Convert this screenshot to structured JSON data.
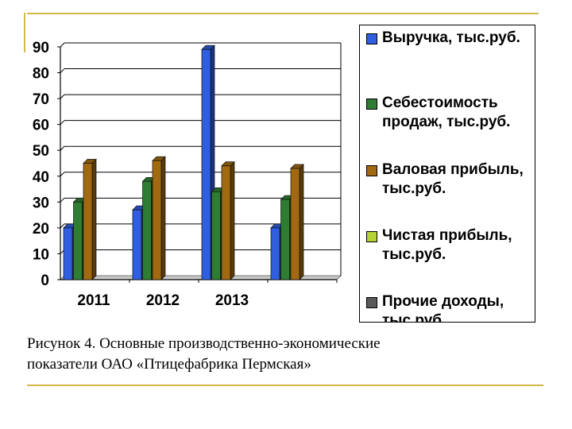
{
  "caption": {
    "line1": "Рисунок 4. Основные производственно-экономические",
    "line2": "показатели ОАО «Птицефабрика Пермская»"
  },
  "colors": {
    "series": [
      "#2f5fe0",
      "#2e7d32",
      "#a26a10",
      "#b5d334",
      "#5a5a5a"
    ],
    "decor": "#d4b84a"
  },
  "chart_data": {
    "type": "bar",
    "categories": [
      "2011",
      "2012",
      "2013",
      ""
    ],
    "ylim": [
      0,
      90
    ],
    "yticks": [
      "0",
      "10",
      "20",
      "30",
      "40",
      "50",
      "60",
      "70",
      "80",
      "90"
    ],
    "grid": true,
    "legend_position": "right",
    "series": [
      {
        "name": "Выручка, тыс.руб.",
        "values": [
          20,
          27,
          89,
          20
        ]
      },
      {
        "name": "Себестоимость продаж, тыс.руб.",
        "values": [
          30,
          38,
          34,
          31
        ]
      },
      {
        "name": "Валовая прибыль, тыс.руб.",
        "values": [
          45,
          46,
          44,
          43
        ]
      },
      {
        "name": "Чистая прибыль, тыс.руб.",
        "values": [
          0,
          0,
          0,
          0
        ]
      },
      {
        "name": "Прочие доходы, тыс.руб.",
        "values": [
          0,
          0,
          0,
          0
        ]
      }
    ]
  }
}
